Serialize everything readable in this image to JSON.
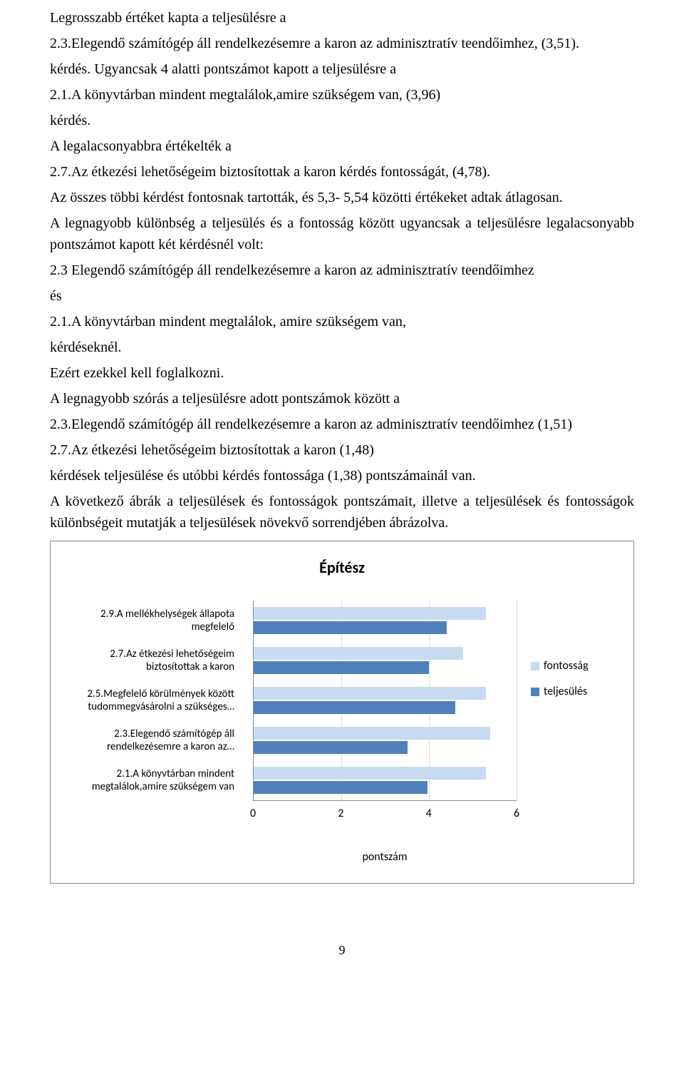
{
  "text": {
    "p1": "Legrosszabb értéket kapta a teljesülésre a",
    "p2": "2.3.Elegendő számítógép áll rendelkezésemre a karon az adminisztratív teendőimhez, (3,51).",
    "p3": "kérdés. Ugyancsak 4 alatti pontszámot kapott a teljesülésre a",
    "p4": "2.1.A könyvtárban mindent megtalálok,amire szükségem van, (3,96)",
    "p5": "kérdés.",
    "p6": "A legalacsonyabbra értékelték a",
    "p7": "2.7.Az étkezési lehetőségeim biztosítottak a karon kérdés fontosságát, (4,78).",
    "p8": "Az összes többi kérdést fontosnak tartották, és 5,3- 5,54 közötti értékeket adtak átlagosan.",
    "p9": "A legnagyobb különbség a teljesülés és a fontosság között ugyancsak a teljesülésre legalacsonyabb pontszámot kapott két kérdésnél volt:",
    "p10": "2.3 Elegendő számítógép áll rendelkezésemre a karon az adminisztratív teendőimhez",
    "p11": "és",
    "p12": "2.1.A könyvtárban mindent megtalálok, amire szükségem van,",
    "p13": "kérdéseknél.",
    "p14": "Ezért ezekkel kell foglalkozni.",
    "p15": "A legnagyobb szórás a teljesülésre adott pontszámok között  a",
    "p16": "2.3.Elegendő számítógép áll rendelkezésemre a karon az adminisztratív teendőimhez (1,51)",
    "p17": "2.7.Az étkezési lehetőségeim biztosítottak a karon (1,48)",
    "p18": "kérdések teljesülése és utóbbi kérdés fontossága (1,38)  pontszámainál van.",
    "p19": "A következő ábrák a teljesülések és fontosságok pontszámait,  illetve a teljesülések és fontosságok különbségeit mutatják a teljesülések növekvő sorrendjében ábrázolva.",
    "pageNum": "9"
  },
  "chart": {
    "type": "bar-horizontal-grouped",
    "title": "Építész",
    "xlabel": "pontszám",
    "xlim": [
      0,
      6
    ],
    "xticks": [
      0,
      2,
      4,
      6
    ],
    "colors": {
      "fontossag": "#c7dcf0",
      "teljesules": "#4f81bd"
    },
    "legend": [
      {
        "key": "fontossag",
        "label": "fontosság"
      },
      {
        "key": "teljesules",
        "label": "teljesülés"
      }
    ],
    "categories": [
      {
        "label": "2.9.A mellékhelységek állapota megfelelő",
        "fontossag": 5.3,
        "teljesules": 4.4
      },
      {
        "label": "2.7.Az étkezési lehetőségeim biztosítottak a karon",
        "fontossag": 4.78,
        "teljesules": 4.0
      },
      {
        "label": "2.5.Megfelelő körülmények között tudommegvásárolni a szükséges…",
        "fontossag": 5.3,
        "teljesules": 4.6
      },
      {
        "label": "2.3.Elegendő számítógép áll rendelkezésemre a karon az…",
        "fontossag": 5.4,
        "teljesules": 3.51
      },
      {
        "label": "2.1.A könyvtárban mindent megtalálok,amire szükségem van",
        "fontossag": 5.3,
        "teljesules": 3.96
      }
    ]
  }
}
